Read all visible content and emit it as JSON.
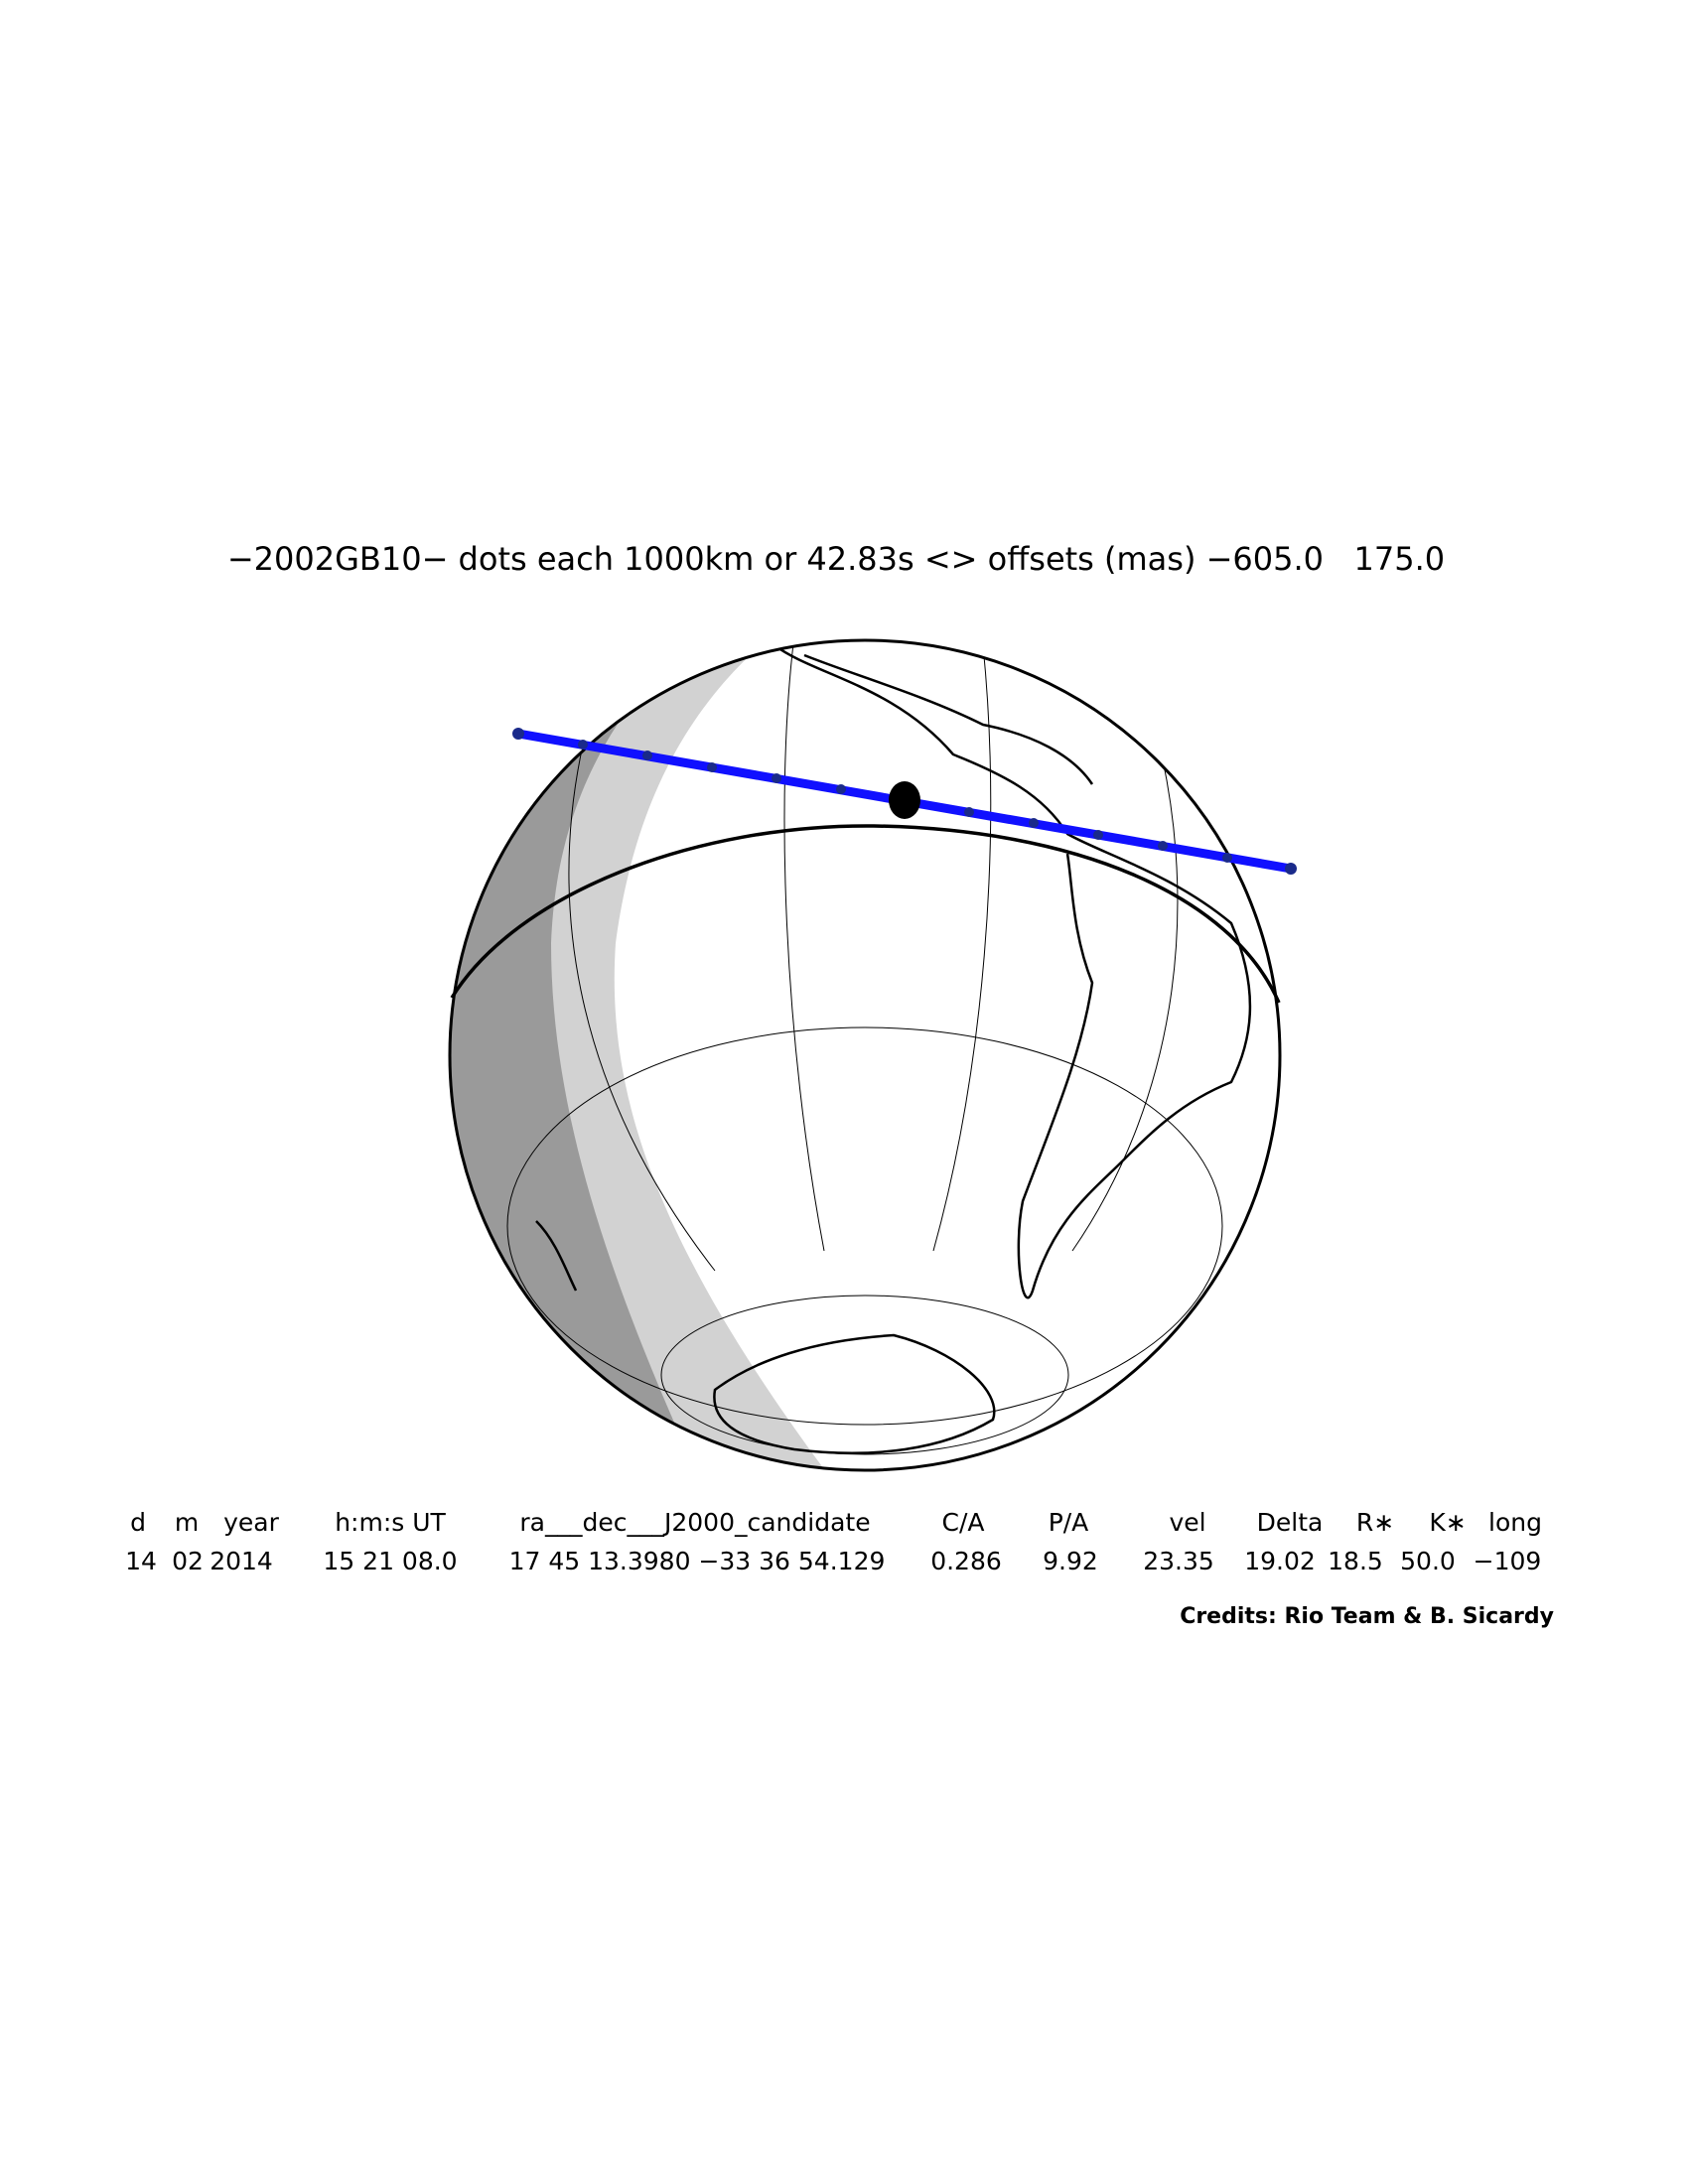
{
  "title": "−2002GB10− dots each 1000km or 42.83s <> offsets (mas) −605.0   175.0",
  "table": {
    "header": [
      "d",
      "m",
      "year",
      "h:m:s UT",
      "ra___dec___J2000_candidate",
      "C/A",
      "P/A",
      "vel",
      "Delta",
      "R∗",
      "K∗",
      "long"
    ],
    "row": [
      "14",
      "02",
      "2014",
      "15 21 08.0",
      "17 45 13.3980 −33 36 54.129",
      "0.286",
      "9.92",
      "23.35",
      "19.02",
      "18.5",
      "50.0",
      "−109"
    ]
  },
  "credits": "Credits: Rio Team & B. Sicardy"
}
